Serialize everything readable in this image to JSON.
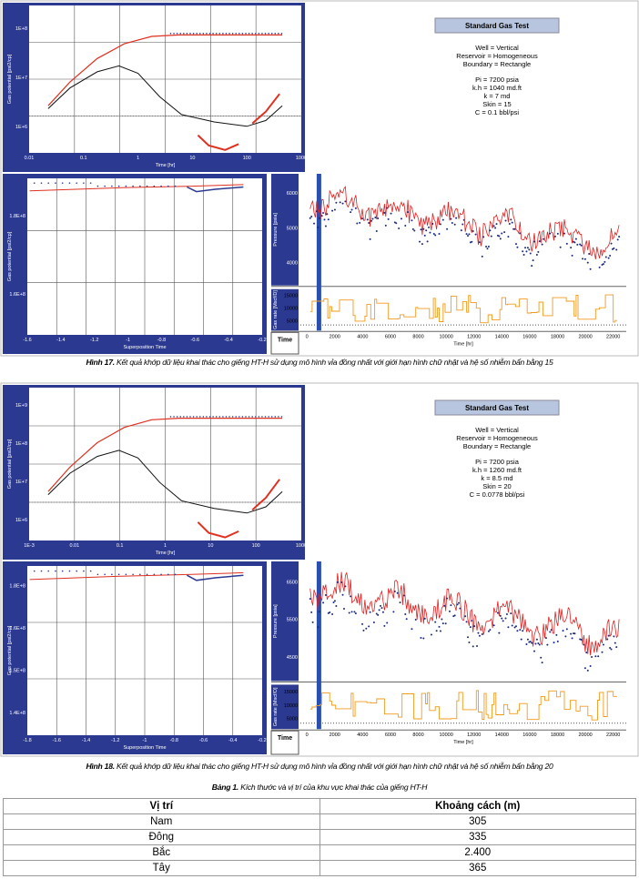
{
  "figures": [
    {
      "info": {
        "title": "Standard Gas Test",
        "model": [
          "Well = Vertical",
          "Reservoir = Homogeneous",
          "Boundary = Rectangle"
        ],
        "params": [
          "Pi = 7200 psia",
          "k.h = 1040 md.ft",
          "k = 7 md",
          "Skin = 15",
          "C = 0.1 bbl/psi"
        ]
      },
      "loglog": {
        "x_ticks": [
          "0.01",
          "0.1",
          "1",
          "10",
          "100",
          "1000"
        ],
        "y_ticks": [
          "1E+8",
          "1E+7",
          "1E+6"
        ],
        "x_label": "Time [hr]",
        "y_label": "Gas potential [psi2/cp]"
      },
      "semilog": {
        "x_ticks": [
          "-1.6",
          "-1.4",
          "-1.2",
          "-1",
          "-0.8",
          "-0.6",
          "-0.4",
          "-0.2"
        ],
        "y_ticks": [
          "1.8E+8",
          "1.6E+8"
        ],
        "x_label": "Superposition Time",
        "y_label": "Gas potential [psi2/cp]"
      },
      "history": {
        "pressure_label": "Pressure [psia]",
        "pressure_ticks": [
          "6000",
          "5000",
          "4000"
        ],
        "rate_label": "Gas rate [Mscf/D]",
        "rate_ticks": [
          "15000",
          "10000",
          "5000"
        ],
        "time_ticks": [
          "0",
          "2000",
          "4000",
          "6000",
          "8000",
          "10000",
          "12000",
          "14000",
          "16000",
          "18000",
          "20000",
          "22000"
        ],
        "x_label": "Time [hr]",
        "time_button": "Time"
      },
      "caption": {
        "label": "Hình 17.",
        "text": "Kết quả khớp dữ liệu khai thác cho giếng HT-H sử dụng mô hình vỉa đồng nhất với giới hạn hình chữ nhật và hệ số nhiễm bẩn bằng 15"
      }
    },
    {
      "info": {
        "title": "Standard Gas Test",
        "model": [
          "Well = Vertical",
          "Reservoir = Homogeneous",
          "Boundary = Rectangle"
        ],
        "params": [
          "Pi = 7200 psia",
          "k.h = 1260 md.ft",
          "k = 8.5 md",
          "Skin = 20",
          "C = 0.0778 bbl/psi"
        ]
      },
      "loglog": {
        "x_ticks": [
          "1E-3",
          "0.01",
          "0.1",
          "1",
          "10",
          "100",
          "1000"
        ],
        "y_ticks": [
          "1E+9",
          "1E+8",
          "1E+7",
          "1E+6"
        ],
        "x_label": "Time [hr]",
        "y_label": "Gas potential [psi2/cp]"
      },
      "semilog": {
        "x_ticks": [
          "-1.8",
          "-1.6",
          "-1.4",
          "-1.2",
          "-1",
          "-0.8",
          "-0.6",
          "-0.4",
          "-0.2"
        ],
        "y_ticks": [
          "1.8E+8",
          "1.6E+8",
          "1.5E+8",
          "1.4E+8"
        ],
        "x_label": "Superposition Time",
        "y_label": "Gas potential [psi2/cp]"
      },
      "history": {
        "pressure_label": "Pressure [psia]",
        "pressure_ticks": [
          "6500",
          "5500",
          "4500"
        ],
        "rate_label": "Gas rate [Mscf/D]",
        "rate_ticks": [
          "15000",
          "10000",
          "5000"
        ],
        "time_ticks": [
          "0",
          "2000",
          "4000",
          "6000",
          "8000",
          "10000",
          "12000",
          "14000",
          "16000",
          "18000",
          "20000",
          "22000"
        ],
        "x_label": "Time [hr]",
        "time_button": "Time"
      },
      "caption": {
        "label": "Hình 18.",
        "text": "Kết quả khớp dữ liệu khai thác cho giếng HT-H sử dụng mô hình vỉa đồng nhất với giới hạn hình chữ nhật và hệ số nhiễm bẩn bằng 20"
      }
    }
  ],
  "table": {
    "label": "Bảng 1.",
    "title": "Kích thước và vị trí của khu vực khai thác của giếng HT-H",
    "header": [
      "Vị trí",
      "Khoảng cách (m)"
    ],
    "rows": [
      [
        "Nam",
        "305"
      ],
      [
        "Đông",
        "335"
      ],
      [
        "Bắc",
        "2.400"
      ],
      [
        "Tây",
        "365"
      ]
    ]
  }
}
